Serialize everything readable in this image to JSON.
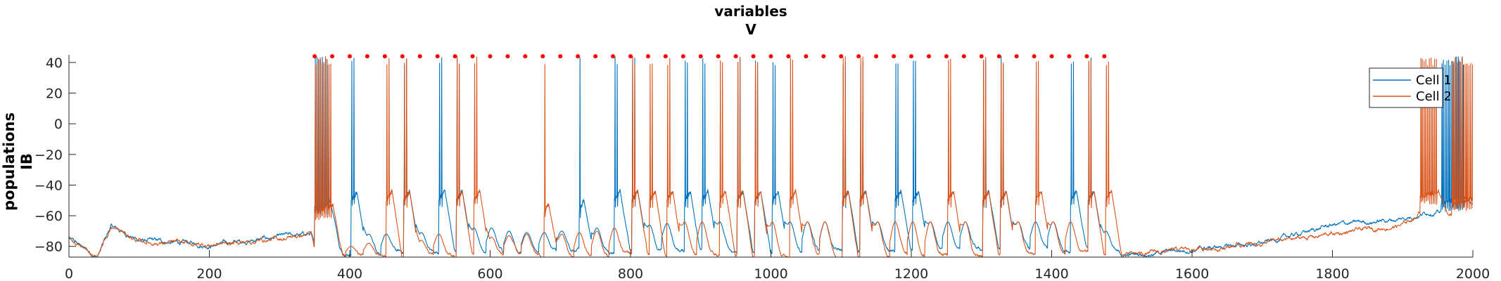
{
  "chart_data": {
    "type": "line",
    "title": [
      "variables",
      "V"
    ],
    "ylabel": [
      "populations",
      "IB"
    ],
    "xlabel": "",
    "xlim": [
      0,
      2000
    ],
    "ylim": [
      -87,
      45
    ],
    "xticks": [
      0,
      200,
      400,
      600,
      800,
      1000,
      1200,
      1400,
      1600,
      1800,
      2000
    ],
    "yticks": [
      -80,
      -60,
      -40,
      -20,
      0,
      20,
      40
    ],
    "grid": false,
    "legend": {
      "placement": "top-right",
      "entries": [
        "Cell 1",
        "Cell 2"
      ]
    },
    "colors": {
      "cell1": "#0072BD",
      "cell2": "#D95319",
      "markers": "#FF0000"
    },
    "pulse_markers": {
      "y": 44,
      "start": 350,
      "end": 1475,
      "step": 25
    },
    "series": [
      {
        "name": "Cell 1",
        "baseline": [
          [
            0,
            -75
          ],
          [
            40,
            -87
          ],
          [
            60,
            -67
          ],
          [
            100,
            -76
          ],
          [
            200,
            -79
          ],
          [
            300,
            -74
          ],
          [
            345,
            -72
          ],
          [
            352,
            -85
          ],
          [
            400,
            -84
          ],
          [
            800,
            -83
          ],
          [
            1200,
            -83
          ],
          [
            1480,
            -82
          ],
          [
            1500,
            -86
          ],
          [
            1600,
            -82
          ],
          [
            1700,
            -78
          ],
          [
            1800,
            -66
          ],
          [
            1900,
            -62
          ],
          [
            1940,
            -57
          ],
          [
            1955,
            -58
          ],
          [
            2000,
            -55
          ]
        ],
        "bursts": [
          [
            350,
            8,
            -55,
            -50
          ],
          [
            402,
            2,
            -50,
            -45
          ],
          [
            477,
            2,
            -50,
            -44
          ],
          [
            527,
            2,
            -50,
            -43
          ],
          [
            552,
            2,
            -50,
            -44
          ],
          [
            727,
            1,
            -58,
            -49
          ],
          [
            777,
            2,
            -50,
            -44
          ],
          [
            802,
            2,
            -50,
            -44
          ],
          [
            877,
            2,
            -50,
            -44
          ],
          [
            902,
            2,
            -50,
            -44
          ],
          [
            952,
            2,
            -50,
            -44
          ],
          [
            977,
            2,
            -50,
            -44
          ],
          [
            1002,
            2,
            -50,
            -44
          ],
          [
            1102,
            2,
            -50,
            -44
          ],
          [
            1127,
            2,
            -50,
            -44
          ],
          [
            1177,
            2,
            -50,
            -44
          ],
          [
            1202,
            2,
            -50,
            -44
          ],
          [
            1302,
            2,
            -50,
            -44
          ],
          [
            1327,
            2,
            -50,
            -44
          ],
          [
            1427,
            2,
            -50,
            -44
          ],
          [
            1452,
            2,
            -50,
            -44
          ],
          [
            1955,
            14,
            -52,
            -48
          ]
        ],
        "bumps": [
          [
            377,
            -76
          ],
          [
            427,
            -72
          ],
          [
            452,
            -72
          ],
          [
            502,
            -71
          ],
          [
            577,
            -68
          ],
          [
            602,
            -68
          ],
          [
            627,
            -70
          ],
          [
            652,
            -71
          ],
          [
            677,
            -71
          ],
          [
            702,
            -70
          ],
          [
            752,
            -68
          ],
          [
            827,
            -66
          ],
          [
            852,
            -65
          ],
          [
            927,
            -64
          ],
          [
            1027,
            -64
          ],
          [
            1052,
            -64
          ],
          [
            1077,
            -64
          ],
          [
            1152,
            -64
          ],
          [
            1227,
            -64
          ],
          [
            1252,
            -64
          ],
          [
            1277,
            -64
          ],
          [
            1352,
            -64
          ],
          [
            1377,
            -64
          ],
          [
            1402,
            -64
          ],
          [
            1477,
            -70
          ]
        ]
      },
      {
        "name": "Cell 2",
        "baseline": [
          [
            0,
            -75
          ],
          [
            40,
            -87
          ],
          [
            60,
            -67
          ],
          [
            100,
            -77
          ],
          [
            200,
            -79
          ],
          [
            300,
            -75
          ],
          [
            345,
            -72
          ],
          [
            352,
            -87
          ],
          [
            400,
            -86
          ],
          [
            800,
            -86
          ],
          [
            1200,
            -86
          ],
          [
            1480,
            -85
          ],
          [
            1500,
            -86
          ],
          [
            1600,
            -82
          ],
          [
            1700,
            -78
          ],
          [
            1800,
            -72
          ],
          [
            1900,
            -66
          ],
          [
            1920,
            -60
          ],
          [
            1930,
            -55
          ],
          [
            1950,
            -60
          ],
          [
            1980,
            -57
          ],
          [
            2000,
            -54
          ]
        ],
        "bursts": [
          [
            350,
            10,
            -58,
            -53
          ],
          [
            452,
            2,
            -50,
            -44
          ],
          [
            477,
            2,
            -50,
            -44
          ],
          [
            552,
            2,
            -50,
            -44
          ],
          [
            577,
            2,
            -50,
            -44
          ],
          [
            677,
            1,
            -58,
            -52
          ],
          [
            802,
            2,
            -50,
            -44
          ],
          [
            827,
            2,
            -50,
            -44
          ],
          [
            852,
            2,
            -50,
            -44
          ],
          [
            927,
            2,
            -50,
            -44
          ],
          [
            952,
            2,
            -50,
            -44
          ],
          [
            977,
            2,
            -50,
            -44
          ],
          [
            1027,
            2,
            -50,
            -44
          ],
          [
            1102,
            2,
            -50,
            -44
          ],
          [
            1127,
            2,
            -50,
            -44
          ],
          [
            1252,
            2,
            -50,
            -44
          ],
          [
            1302,
            2,
            -50,
            -44
          ],
          [
            1327,
            2,
            -50,
            -44
          ],
          [
            1377,
            2,
            -50,
            -44
          ],
          [
            1452,
            2,
            -50,
            -44
          ],
          [
            1477,
            2,
            -50,
            -44
          ],
          [
            1925,
            10,
            -48,
            -44
          ],
          [
            1970,
            14,
            -52,
            -48
          ]
        ],
        "bumps": [
          [
            402,
            -80
          ],
          [
            427,
            -78
          ],
          [
            502,
            -76
          ],
          [
            527,
            -72
          ],
          [
            602,
            -74
          ],
          [
            627,
            -73
          ],
          [
            652,
            -72
          ],
          [
            702,
            -72
          ],
          [
            727,
            -71
          ],
          [
            752,
            -70
          ],
          [
            777,
            -68
          ],
          [
            877,
            -64
          ],
          [
            902,
            -64
          ],
          [
            1002,
            -64
          ],
          [
            1052,
            -64
          ],
          [
            1077,
            -64
          ],
          [
            1152,
            -64
          ],
          [
            1177,
            -64
          ],
          [
            1202,
            -64
          ],
          [
            1227,
            -64
          ],
          [
            1277,
            -64
          ],
          [
            1352,
            -64
          ],
          [
            1402,
            -64
          ],
          [
            1427,
            -64
          ]
        ]
      }
    ]
  }
}
